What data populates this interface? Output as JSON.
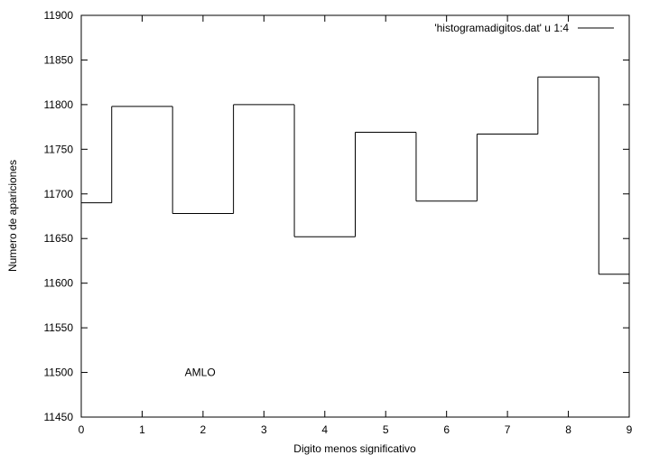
{
  "chart_data": {
    "type": "line",
    "style": "steps",
    "xlabel": "Digito menos significativo",
    "ylabel": "Numero de apariciones",
    "xlim": [
      0,
      9
    ],
    "ylim": [
      11450,
      11900
    ],
    "xticks": [
      0,
      1,
      2,
      3,
      4,
      5,
      6,
      7,
      8,
      9
    ],
    "yticks": [
      11450,
      11500,
      11550,
      11600,
      11650,
      11700,
      11750,
      11800,
      11850,
      11900
    ],
    "grid": false,
    "legend_position": "top-right",
    "series": [
      {
        "name": "'histogramadigitos.dat' u 1:4",
        "x": [
          0,
          1,
          2,
          3,
          4,
          5,
          6,
          7,
          8,
          9
        ],
        "y": [
          11690,
          11798,
          11678,
          11800,
          11652,
          11769,
          11692,
          11767,
          11831,
          11610
        ],
        "color": "#000000"
      }
    ],
    "annotations": [
      {
        "text": "AMLO",
        "x": 1.7,
        "y": 11500
      }
    ]
  }
}
